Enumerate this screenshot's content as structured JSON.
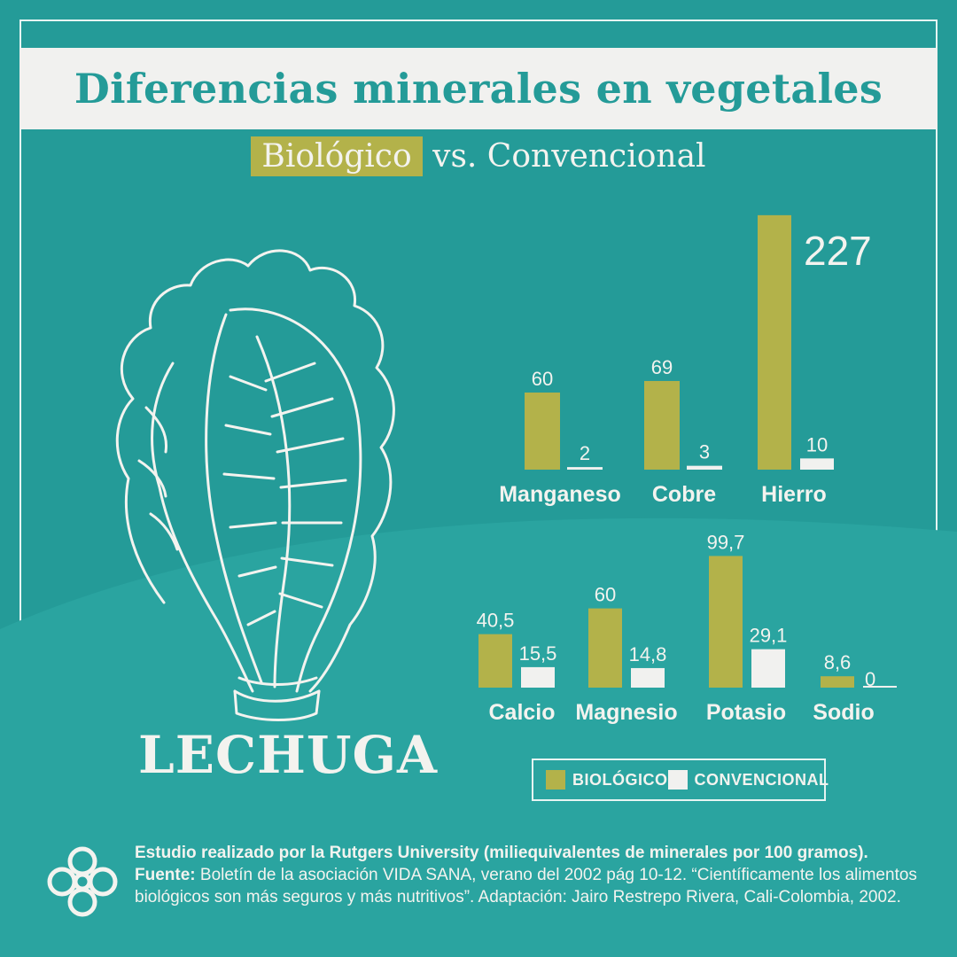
{
  "header": {
    "title": "Diferencias minerales en vegetales",
    "subtitle_highlight": "Biológico",
    "subtitle_rest": "vs. Convencional"
  },
  "vegetable": {
    "name": "LECHUGA",
    "illustration_icon": "lettuce-icon"
  },
  "colors": {
    "background": "#249b98",
    "biologico": "#b3b24a",
    "convencional": "#f1f1ef",
    "text_light": "#f3f3ef"
  },
  "legend": {
    "biologico": "BIOLÓGICO",
    "convencional": "CONVENCIONAL"
  },
  "chart_data": {
    "type": "bar",
    "title": "Diferencias minerales en vegetales",
    "series": [
      {
        "name": "BIOLÓGICO",
        "color": "#b3b24a"
      },
      {
        "name": "CONVENCIONAL",
        "color": "#f1f1ef"
      }
    ],
    "groups": [
      {
        "category": "Manganeso",
        "biologico": 60,
        "convencional": 2,
        "biologico_label": "60",
        "convencional_label": "2"
      },
      {
        "category": "Cobre",
        "biologico": 69,
        "convencional": 3,
        "biologico_label": "69",
        "convencional_label": "3"
      },
      {
        "category": "Hierro",
        "biologico": 227,
        "convencional": 10,
        "biologico_label": "227",
        "convencional_label": "10"
      },
      {
        "category": "Calcio",
        "biologico": 40.5,
        "convencional": 15.5,
        "biologico_label": "40,5",
        "convencional_label": "15,5"
      },
      {
        "category": "Magnesio",
        "biologico": 60,
        "convencional": 14.8,
        "biologico_label": "60",
        "convencional_label": "14,8"
      },
      {
        "category": "Potasio",
        "biologico": 99.7,
        "convencional": 29.1,
        "biologico_label": "99,7",
        "convencional_label": "29,1"
      },
      {
        "category": "Sodio",
        "biologico": 8.6,
        "convencional": 0,
        "biologico_label": "8,6",
        "convencional_label": "0"
      }
    ]
  },
  "footer": {
    "study": "Estudio realizado por la Rutgers University (miliequivalentes de minerales por 100 gramos).",
    "source_label": "Fuente:",
    "source_text": "Boletín de la asociación VIDA SANA, verano del 2002 pág 10-12. “Científicamente los alimentos biológicos son más seguros y más nutritivos”. Adaptación: Jairo Restrepo Rivera, Cali-Colombia, 2002.",
    "logo_icon": "knot-logo-icon"
  }
}
